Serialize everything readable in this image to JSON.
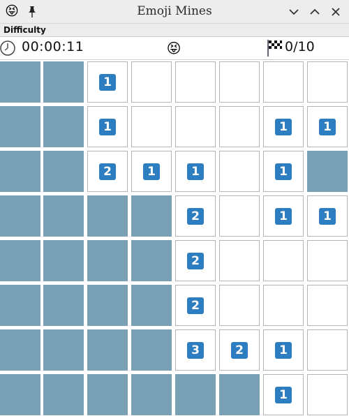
{
  "window": {
    "title": "Emoji Mines",
    "app_icon": "😝",
    "buttons": [
      "minimize",
      "maximize",
      "close"
    ]
  },
  "menu": {
    "difficulty_label": "Difficulty"
  },
  "status": {
    "timer": "00:00:11",
    "face": "😝",
    "flags": "0/10"
  },
  "board": {
    "rows": 8,
    "cols": 8,
    "legend": "C = covered, 0 = open empty, 1-8 = open with number",
    "cells": [
      [
        "C",
        "C",
        "1",
        "0",
        "0",
        "0",
        "0",
        "0"
      ],
      [
        "C",
        "C",
        "1",
        "0",
        "0",
        "0",
        "1",
        "1"
      ],
      [
        "C",
        "C",
        "2",
        "1",
        "1",
        "0",
        "1",
        "C"
      ],
      [
        "C",
        "C",
        "C",
        "C",
        "2",
        "0",
        "1",
        "1"
      ],
      [
        "C",
        "C",
        "C",
        "C",
        "2",
        "0",
        "0",
        "0"
      ],
      [
        "C",
        "C",
        "C",
        "C",
        "2",
        "0",
        "0",
        "0"
      ],
      [
        "C",
        "C",
        "C",
        "C",
        "3",
        "2",
        "1",
        "0"
      ],
      [
        "C",
        "C",
        "C",
        "C",
        "C",
        "C",
        "1",
        "0"
      ]
    ]
  },
  "colors": {
    "covered": "#79a0b5",
    "number_badge": "#2c7ec0",
    "open": "#ffffff"
  }
}
